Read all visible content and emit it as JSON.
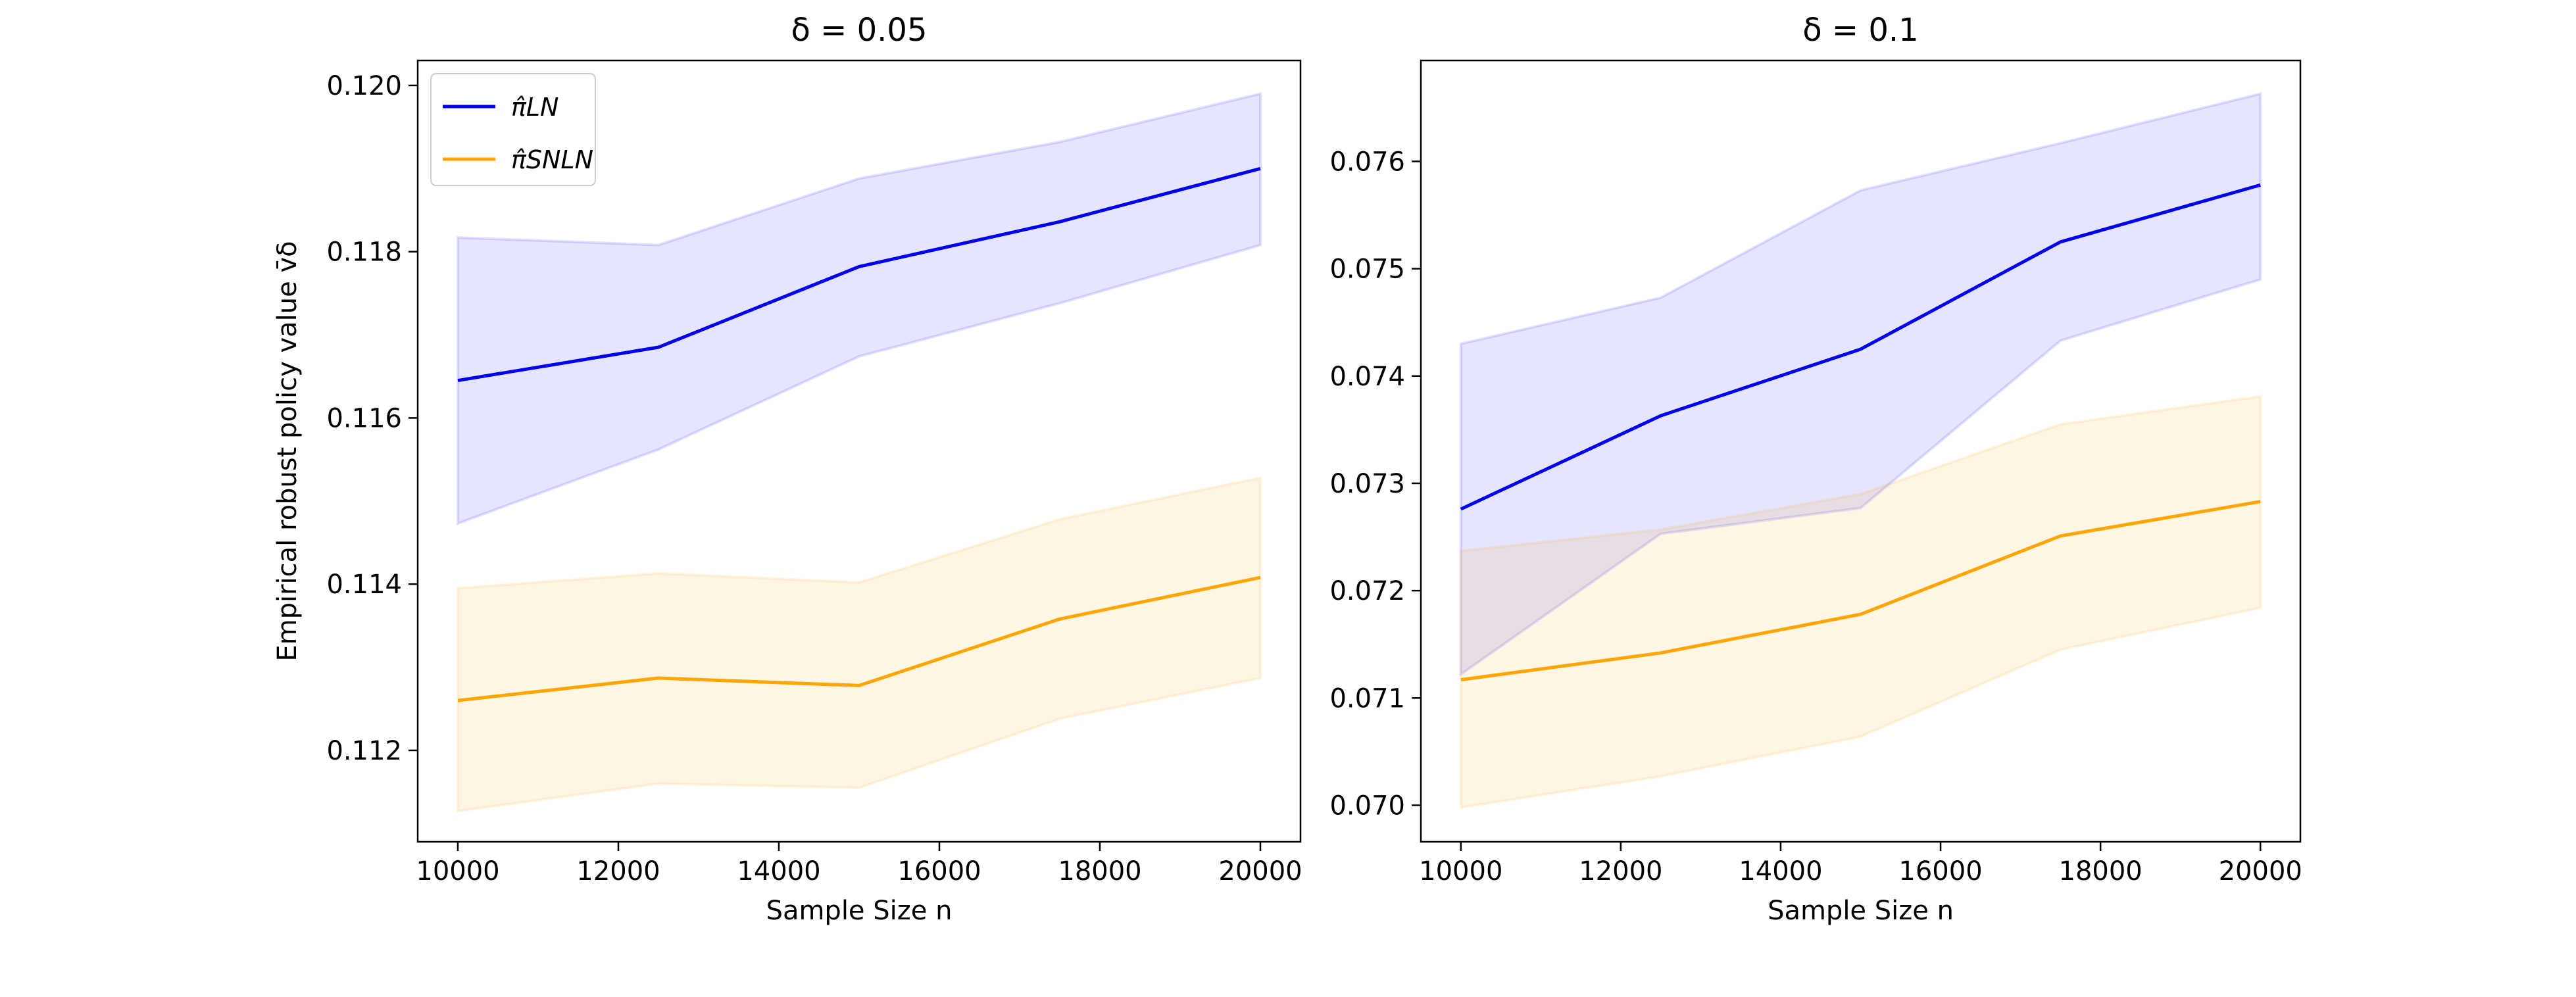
{
  "chart_data": [
    {
      "type": "line",
      "title": "δ = 0.05",
      "xlabel": "Sample Size n",
      "ylabel": "Empirical robust policy value v̄δ",
      "x": [
        10000,
        12500,
        15000,
        17500,
        20000
      ],
      "xticks": [
        10000,
        12000,
        14000,
        16000,
        18000,
        20000
      ],
      "xlim": [
        9500,
        20500
      ],
      "yticks": [
        0.112,
        0.114,
        0.116,
        0.118,
        0.12
      ],
      "ylim": [
        0.1109,
        0.1203
      ],
      "grid": false,
      "legend": "top-left",
      "series": [
        {
          "name": "π̂LN",
          "color": "#0000ee",
          "band_color": "#0000ff",
          "values": [
            0.11645,
            0.11685,
            0.11782,
            0.11836,
            0.119
          ],
          "upper": [
            0.11817,
            0.11808,
            0.11888,
            0.11932,
            0.1199
          ],
          "lower": [
            0.11473,
            0.11562,
            0.11674,
            0.11738,
            0.11808
          ]
        },
        {
          "name": "π̂SNLN",
          "color": "#ffa500",
          "band_color": "#ffa500",
          "values": [
            0.1126,
            0.11287,
            0.11278,
            0.11358,
            0.11408
          ],
          "upper": [
            0.11395,
            0.11413,
            0.11402,
            0.11478,
            0.11528
          ],
          "lower": [
            0.11127,
            0.1116,
            0.11155,
            0.11238,
            0.11287
          ]
        }
      ]
    },
    {
      "type": "line",
      "title": "δ = 0.1",
      "xlabel": "Sample Size n",
      "ylabel": "",
      "x": [
        10000,
        12500,
        15000,
        17500,
        20000
      ],
      "xticks": [
        10000,
        12000,
        14000,
        16000,
        18000,
        20000
      ],
      "xlim": [
        9500,
        20500
      ],
      "yticks": [
        0.07,
        0.071,
        0.072,
        0.073,
        0.074,
        0.075,
        0.076
      ],
      "ylim": [
        0.06966,
        0.07694
      ],
      "grid": false,
      "series": [
        {
          "name": "π̂LN",
          "color": "#0000ee",
          "band_color": "#0000ff",
          "values": [
            0.07276,
            0.07363,
            0.07425,
            0.07525,
            0.07578
          ],
          "upper": [
            0.0743,
            0.07473,
            0.07573,
            0.07617,
            0.07663
          ],
          "lower": [
            0.07122,
            0.07253,
            0.07277,
            0.07433,
            0.0749
          ]
        },
        {
          "name": "π̂SNLN",
          "color": "#ffa500",
          "band_color": "#ffa500",
          "values": [
            0.07117,
            0.07142,
            0.07178,
            0.07251,
            0.07283
          ],
          "upper": [
            0.07237,
            0.07257,
            0.0729,
            0.07355,
            0.07381
          ],
          "lower": [
            0.06998,
            0.07027,
            0.07064,
            0.07145,
            0.07184
          ]
        }
      ]
    }
  ]
}
